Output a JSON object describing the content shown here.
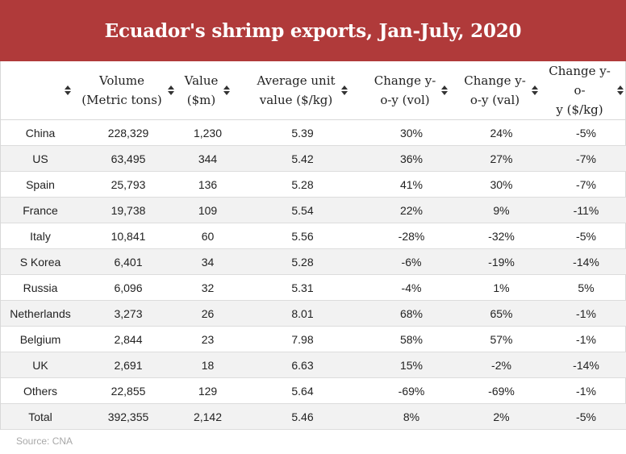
{
  "title": "Ecuador's shrimp exports, Jan-July, 2020",
  "colors": {
    "header_bg": "#b03a3a",
    "stripe": "#f2f2f2"
  },
  "table": {
    "headers": [
      {
        "lines": [
          "",
          ""
        ]
      },
      {
        "lines": [
          "Volume",
          "(Metric tons)"
        ]
      },
      {
        "lines": [
          "Value",
          "($m)"
        ]
      },
      {
        "lines": [
          "Average unit",
          "value ($/kg)"
        ]
      },
      {
        "lines": [
          "Change y-",
          "o-y (vol)"
        ]
      },
      {
        "lines": [
          "Change y-",
          "o-y (val)"
        ]
      },
      {
        "lines": [
          "Change y-o-",
          "y ($/kg)"
        ]
      }
    ],
    "rows": [
      [
        "China",
        "228,329",
        "1,230",
        "5.39",
        "30%",
        "24%",
        "-5%"
      ],
      [
        "US",
        "63,495",
        "344",
        "5.42",
        "36%",
        "27%",
        "-7%"
      ],
      [
        "Spain",
        "25,793",
        "136",
        "5.28",
        "41%",
        "30%",
        "-7%"
      ],
      [
        "France",
        "19,738",
        "109",
        "5.54",
        "22%",
        "9%",
        "-11%"
      ],
      [
        "Italy",
        "10,841",
        "60",
        "5.56",
        "-28%",
        "-32%",
        "-5%"
      ],
      [
        "S Korea",
        "6,401",
        "34",
        "5.28",
        "-6%",
        "-19%",
        "-14%"
      ],
      [
        "Russia",
        "6,096",
        "32",
        "5.31",
        "-4%",
        "1%",
        "5%"
      ],
      [
        "Netherlands",
        "3,273",
        "26",
        "8.01",
        "68%",
        "65%",
        "-1%"
      ],
      [
        "Belgium",
        "2,844",
        "23",
        "7.98",
        "58%",
        "57%",
        "-1%"
      ],
      [
        "UK",
        "2,691",
        "18",
        "6.63",
        "15%",
        "-2%",
        "-14%"
      ],
      [
        "Others",
        "22,855",
        "129",
        "5.64",
        "-69%",
        "-69%",
        "-1%"
      ],
      [
        "Total",
        "392,355",
        "2,142",
        "5.46",
        "8%",
        "2%",
        "-5%"
      ]
    ]
  },
  "source": "Source: CNA"
}
